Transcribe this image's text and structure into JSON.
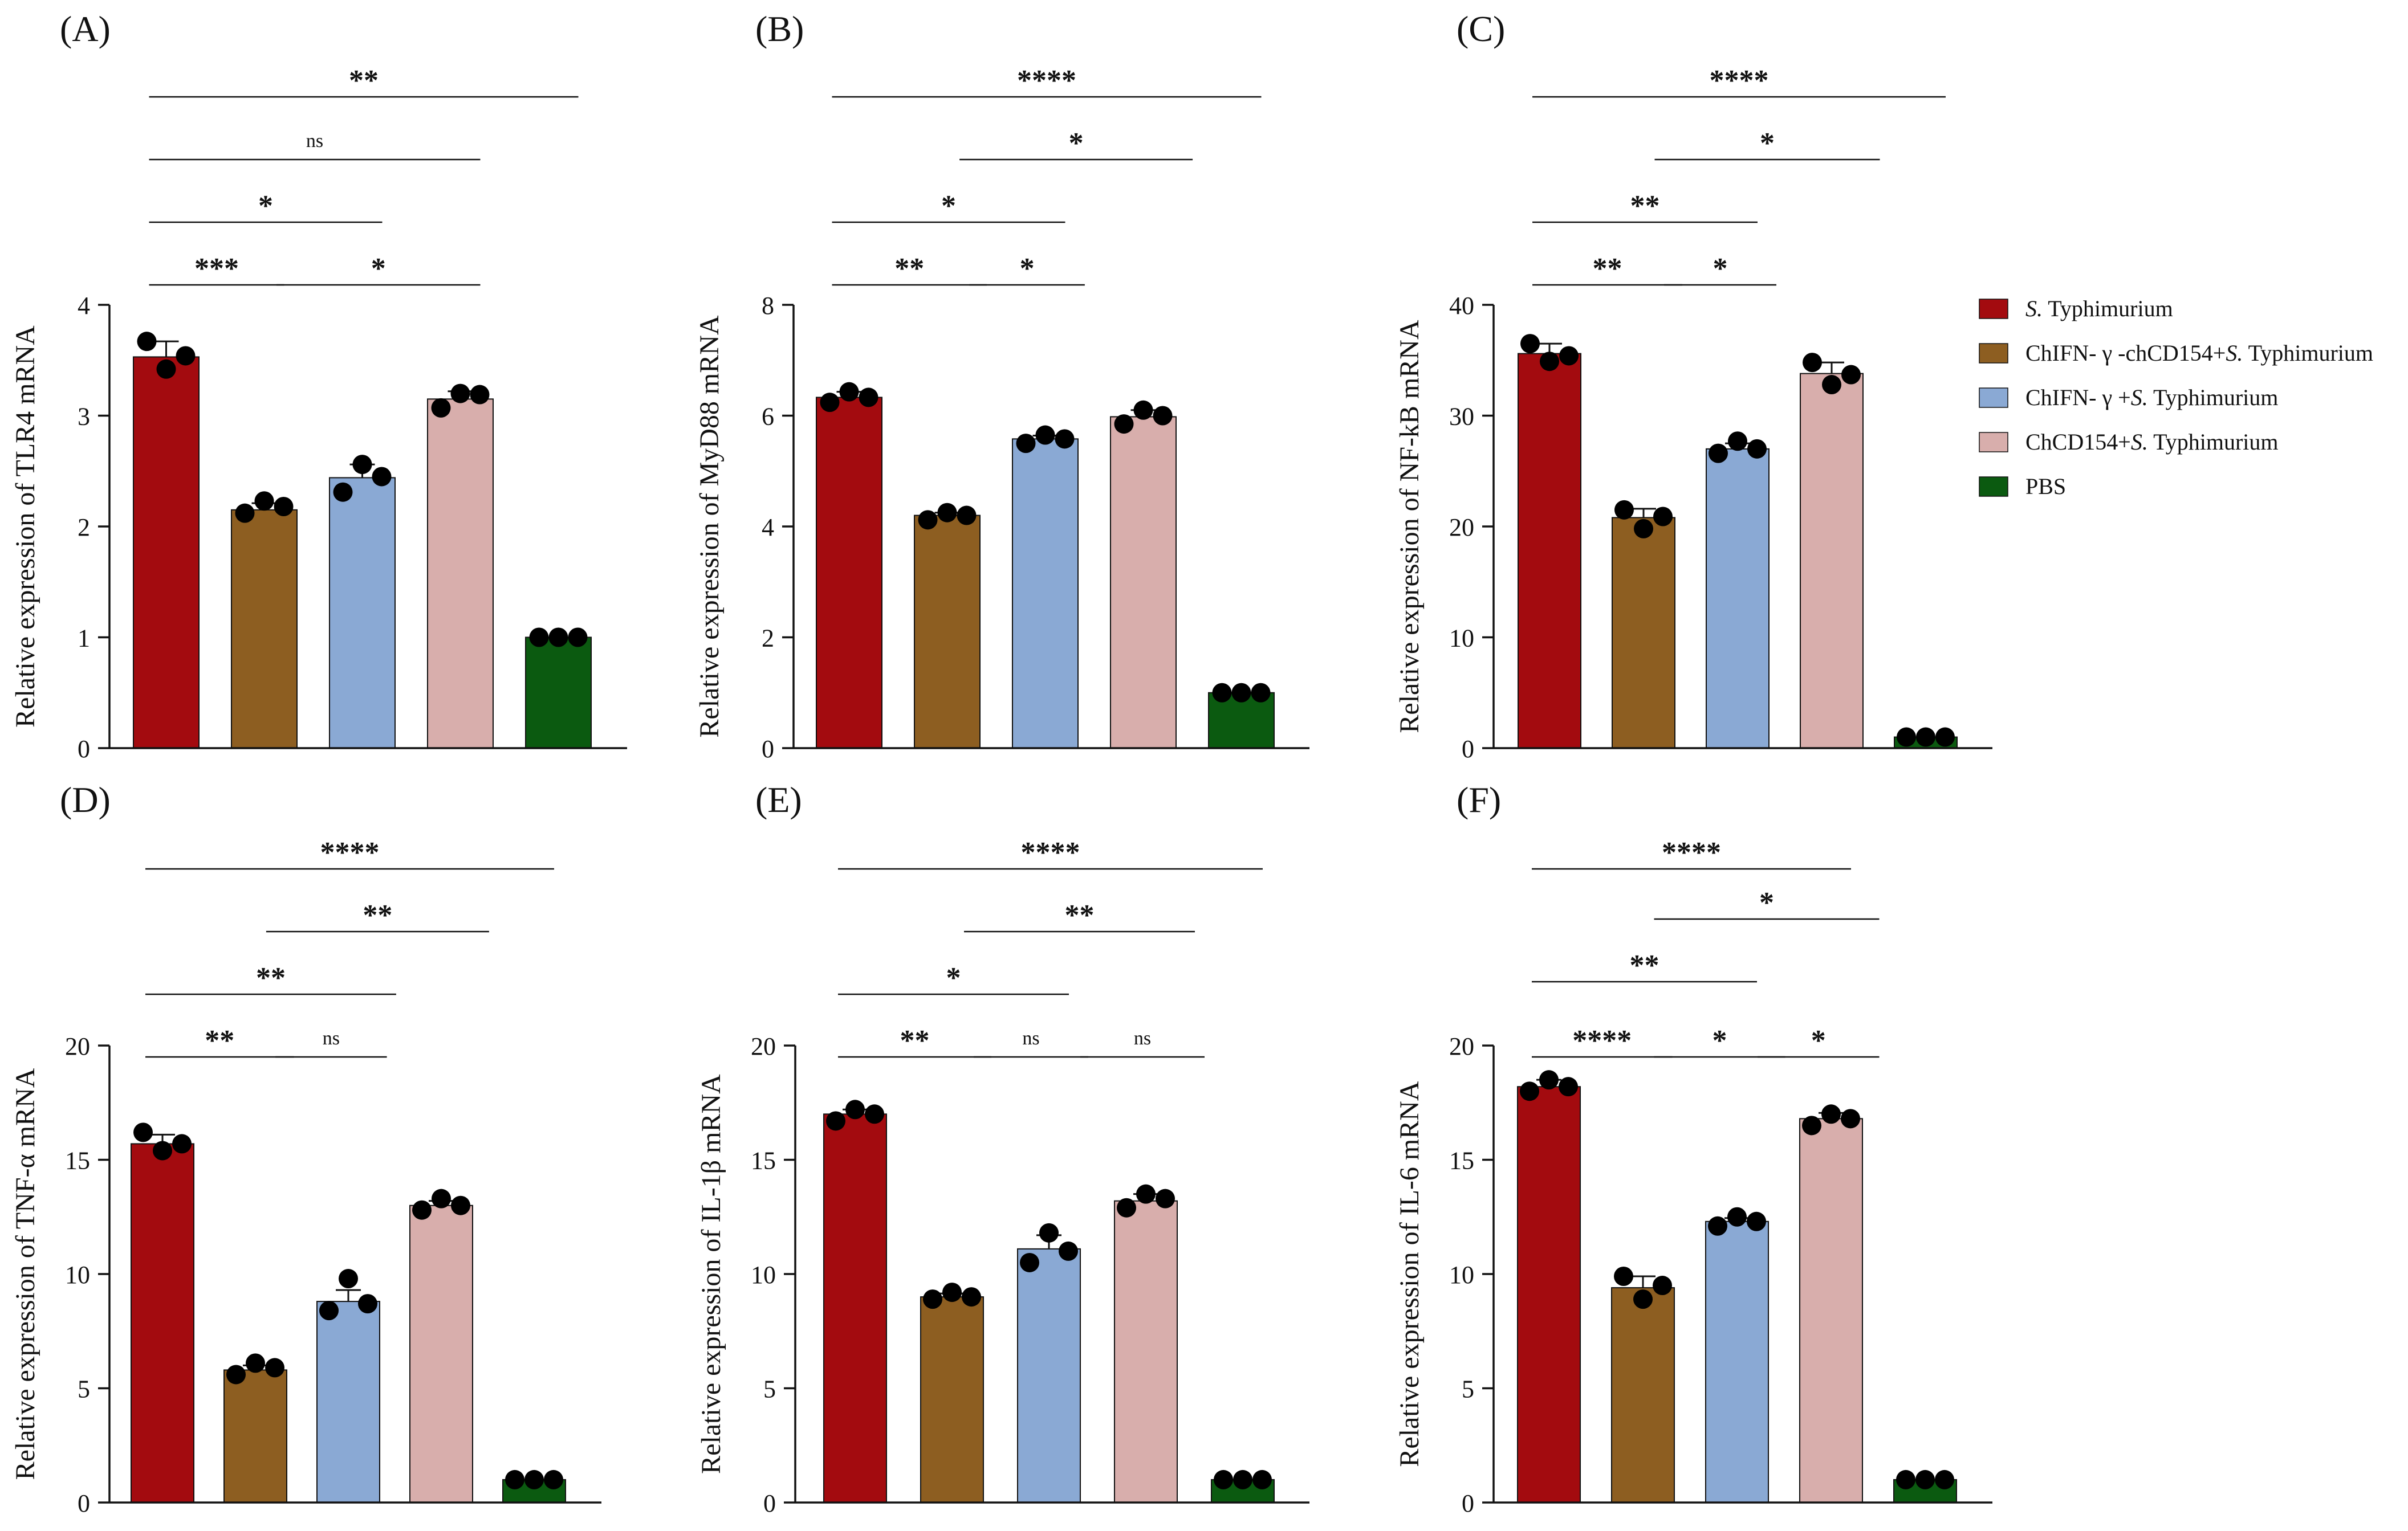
{
  "chart_data": [
    {
      "type": "bar",
      "panel_label": "(A)",
      "ylabel": "Relative expression of TLR4 mRNA",
      "ylim": [
        0,
        4
      ],
      "yticks": [
        "0",
        "1",
        "2",
        "3",
        "4"
      ],
      "categories": [
        "S. Typhimurium",
        "ChIFN-γ-chCD154+S. Typhimurium",
        "ChIFN-γ+S. Typhimurium",
        "ChCD154+S. Typhimurium",
        "PBS"
      ],
      "values": [
        3.53,
        2.15,
        2.44,
        3.15,
        1.0
      ],
      "errors": [
        0.14,
        0.06,
        0.12,
        0.07,
        0.0
      ],
      "points": [
        [
          3.67,
          3.42,
          3.54
        ],
        [
          2.12,
          2.23,
          2.18
        ],
        [
          2.31,
          2.56,
          2.45
        ],
        [
          3.07,
          3.2,
          3.19
        ],
        [
          1.0,
          1.0,
          1.0
        ]
      ],
      "significance": [
        {
          "from": 0,
          "to": 4,
          "label": "**",
          "level": 4
        },
        {
          "from": 0,
          "to": 3,
          "label": "ns",
          "level": 3
        },
        {
          "from": 0,
          "to": 2,
          "label": "*",
          "level": 2
        },
        {
          "from": 0,
          "to": 1,
          "label": "***",
          "level": 1
        },
        {
          "from": 1.3,
          "to": 3,
          "label": "*",
          "level": 1
        }
      ]
    },
    {
      "type": "bar",
      "panel_label": "(B)",
      "ylabel": "Relative expression of MyD88 mRNA",
      "ylim": [
        0,
        8
      ],
      "yticks": [
        "0",
        "2",
        "4",
        "6",
        "8"
      ],
      "categories": [
        "S. Typhimurium",
        "ChIFN-γ-chCD154+S. Typhimurium",
        "ChIFN-γ+S. Typhimurium",
        "ChCD154+S. Typhimurium",
        "PBS"
      ],
      "values": [
        6.33,
        4.2,
        5.58,
        5.98,
        1.0
      ],
      "errors": [
        0.1,
        0.05,
        0.06,
        0.12,
        0.0
      ],
      "points": [
        [
          6.24,
          6.43,
          6.33
        ],
        [
          4.12,
          4.25,
          4.2
        ],
        [
          5.5,
          5.65,
          5.58
        ],
        [
          5.85,
          6.1,
          6.0
        ],
        [
          1.0,
          1.0,
          1.0
        ]
      ],
      "significance": [
        {
          "from": 0,
          "to": 4,
          "label": "****",
          "level": 4
        },
        {
          "from": 1.3,
          "to": 3.3,
          "label": "*",
          "level": 3
        },
        {
          "from": 0,
          "to": 2,
          "label": "*",
          "level": 2
        },
        {
          "from": 0,
          "to": 1.2,
          "label": "**",
          "level": 1
        },
        {
          "from": 1.4,
          "to": 2.2,
          "label": "*",
          "level": 1
        }
      ]
    },
    {
      "type": "bar",
      "panel_label": "(C)",
      "ylabel": "Relative expression of NF-kB mRNA",
      "ylim": [
        0,
        40
      ],
      "yticks": [
        "0",
        "10",
        "20",
        "30",
        "40"
      ],
      "categories": [
        "S. Typhimurium",
        "ChIFN-γ-chCD154+S. Typhimurium",
        "ChIFN-γ+S. Typhimurium",
        "ChCD154+S. Typhimurium",
        "PBS"
      ],
      "values": [
        35.6,
        20.8,
        27.0,
        33.8,
        1.0
      ],
      "errors": [
        0.9,
        0.8,
        0.5,
        1.0,
        0.0
      ],
      "points": [
        [
          36.5,
          34.9,
          35.4
        ],
        [
          21.5,
          19.8,
          20.9
        ],
        [
          26.6,
          27.7,
          27.0
        ],
        [
          34.8,
          32.8,
          33.7
        ],
        [
          1.0,
          1.0,
          1.0
        ]
      ],
      "significance": [
        {
          "from": 0,
          "to": 4,
          "label": "****",
          "level": 4
        },
        {
          "from": 1.3,
          "to": 3.3,
          "label": "*",
          "level": 3
        },
        {
          "from": 0,
          "to": 2,
          "label": "**",
          "level": 2
        },
        {
          "from": 0,
          "to": 1.2,
          "label": "**",
          "level": 1
        },
        {
          "from": 1.4,
          "to": 2.2,
          "label": "*",
          "level": 1
        }
      ]
    },
    {
      "type": "bar",
      "panel_label": "(D)",
      "ylabel": "Relative expression of TNF-α mRNA",
      "ylim": [
        0,
        20
      ],
      "yticks": [
        "0",
        "5",
        "10",
        "15",
        "20"
      ],
      "categories": [
        "S. Typhimurium",
        "ChIFN-γ-chCD154+S. Typhimurium",
        "ChIFN-γ+S. Typhimurium",
        "ChCD154+S. Typhimurium",
        "PBS"
      ],
      "values": [
        15.7,
        5.8,
        8.8,
        13.0,
        1.0
      ],
      "errors": [
        0.4,
        0.2,
        0.5,
        0.2,
        0.0
      ],
      "points": [
        [
          16.2,
          15.4,
          15.7
        ],
        [
          5.6,
          6.1,
          5.9
        ],
        [
          8.4,
          9.8,
          8.7
        ],
        [
          12.8,
          13.3,
          13.0
        ],
        [
          1.0,
          1.0,
          1.0
        ]
      ],
      "significance": [
        {
          "from": 0,
          "to": 4,
          "label": "****",
          "level": 4
        },
        {
          "from": 1.3,
          "to": 3.3,
          "label": "**",
          "level": 3
        },
        {
          "from": 0,
          "to": 2.3,
          "label": "**",
          "level": 2
        },
        {
          "from": 0,
          "to": 1.2,
          "label": "**",
          "level": 1
        },
        {
          "from": 1.4,
          "to": 2.2,
          "label": "ns",
          "level": 1
        }
      ]
    },
    {
      "type": "bar",
      "panel_label": "(E)",
      "ylabel": "Relative expression of IL-1β mRNA",
      "ylim": [
        0,
        20
      ],
      "yticks": [
        "0",
        "5",
        "10",
        "15",
        "20"
      ],
      "categories": [
        "S. Typhimurium",
        "ChIFN-γ-chCD154+S. Typhimurium",
        "ChIFN-γ+S. Typhimurium",
        "ChCD154+S. Typhimurium",
        "PBS"
      ],
      "values": [
        17.0,
        9.0,
        11.1,
        13.2,
        1.0
      ],
      "errors": [
        0.2,
        0.15,
        0.6,
        0.3,
        0.0
      ],
      "points": [
        [
          16.7,
          17.2,
          17.0
        ],
        [
          8.9,
          9.2,
          9.0
        ],
        [
          10.5,
          11.8,
          11.0
        ],
        [
          12.9,
          13.5,
          13.3
        ],
        [
          1.0,
          1.0,
          1.0
        ]
      ],
      "significance": [
        {
          "from": 0,
          "to": 4,
          "label": "****",
          "level": 4
        },
        {
          "from": 1.3,
          "to": 3.3,
          "label": "**",
          "level": 3
        },
        {
          "from": 0,
          "to": 2,
          "label": "*",
          "level": 2
        },
        {
          "from": 0,
          "to": 1.2,
          "label": "**",
          "level": 1
        },
        {
          "from": 1.4,
          "to": 2.2,
          "label": "ns",
          "level": 1
        },
        {
          "from": 2.5,
          "to": 3.4,
          "label": "ns",
          "level": 1
        }
      ]
    },
    {
      "type": "bar",
      "panel_label": "(F)",
      "ylabel": "Relative expression of IL-6 mRNA",
      "ylim": [
        0,
        20
      ],
      "yticks": [
        "0",
        "5",
        "10",
        "15",
        "20"
      ],
      "categories": [
        "S. Typhimurium",
        "ChIFN-γ-chCD154+S. Typhimurium",
        "ChIFN-γ+S. Typhimurium",
        "ChCD154+S. Typhimurium",
        "PBS"
      ],
      "values": [
        18.2,
        9.4,
        12.3,
        16.8,
        1.0
      ],
      "errors": [
        0.3,
        0.5,
        0.15,
        0.25,
        0.0
      ],
      "points": [
        [
          18.0,
          18.5,
          18.2
        ],
        [
          9.9,
          8.9,
          9.5
        ],
        [
          12.1,
          12.5,
          12.3
        ],
        [
          16.5,
          17.0,
          16.8
        ],
        [
          1.0,
          1.0,
          1.0
        ]
      ],
      "significance": [
        {
          "from": 0,
          "to": 3,
          "label": "****",
          "level": 4
        },
        {
          "from": 1.3,
          "to": 3.3,
          "label": "*",
          "level": 3.2
        },
        {
          "from": 0,
          "to": 2,
          "label": "**",
          "level": 2.2
        },
        {
          "from": 0,
          "to": 1.1,
          "label": "****",
          "level": 1
        },
        {
          "from": 1.3,
          "to": 2.3,
          "label": "*",
          "level": 1
        },
        {
          "from": 2.4,
          "to": 3.3,
          "label": "*",
          "level": 1
        }
      ]
    }
  ],
  "legend": {
    "items": [
      {
        "prefix": "",
        "italic": "S.",
        "suffix": " Typhimurium",
        "color": "#a30b0f"
      },
      {
        "prefix": "ChIFN- γ -chCD154+",
        "italic": "S.",
        "suffix": " Typhimurium",
        "color": "#8d5e21"
      },
      {
        "prefix": "ChIFN- γ +",
        "italic": "S.",
        "suffix": " Typhimurium",
        "color": "#8aa9d4"
      },
      {
        "prefix": "ChCD154+",
        "italic": "S.",
        "suffix": " Typhimurium",
        "color": "#d8aeac"
      },
      {
        "prefix": "PBS",
        "italic": "",
        "suffix": "",
        "color": "#0b5a10"
      }
    ]
  },
  "colors": [
    "#a30b0f",
    "#8d5e21",
    "#8aa9d4",
    "#d8aeac",
    "#0b5a10"
  ]
}
